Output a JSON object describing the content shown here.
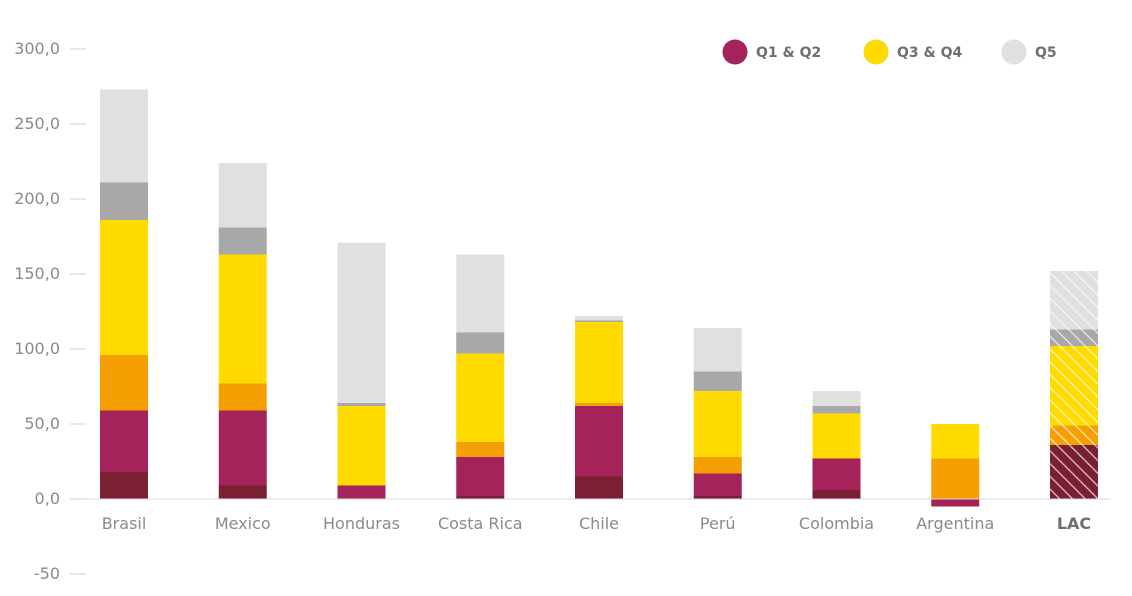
{
  "chart_data": {
    "type": "bar",
    "stacked": true,
    "categories": [
      "Brasil",
      "Mexico",
      "Honduras",
      "Costa Rica",
      "Chile",
      "Perú",
      "Colombia",
      "Argentina",
      "LAC"
    ],
    "highlight_category": "LAC",
    "ylim": [
      -50,
      300
    ],
    "yticks": [
      -50,
      0,
      50,
      100,
      150,
      200,
      250,
      300
    ],
    "ytick_labels": [
      "-50",
      "0,0",
      "50,0",
      "100,0",
      "150,0",
      "200,0",
      "250,0",
      "300,0"
    ],
    "grid": false,
    "legend_position": "top-right",
    "legend": [
      {
        "label": "Q1 & Q2",
        "color": "#a3235a"
      },
      {
        "label": "Q3 & Q4",
        "color": "#ffdb00"
      },
      {
        "label": "Q5",
        "color": "#e0e0e0"
      }
    ],
    "series": [
      {
        "group": "Q1 & Q2",
        "color": "#7a2032",
        "values": [
          18,
          9,
          0,
          2,
          15,
          2,
          6,
          0,
          36
        ]
      },
      {
        "group": "Q1 & Q2",
        "color": "#a3235a",
        "values": [
          41,
          50,
          9,
          26,
          47,
          15,
          21,
          -5,
          0
        ]
      },
      {
        "group": "Q3 & Q4",
        "color": "#f5a000",
        "values": [
          37,
          18,
          0,
          10,
          2,
          11,
          0,
          27,
          13
        ]
      },
      {
        "group": "Q3 & Q4",
        "color": "#ffdb00",
        "values": [
          90,
          86,
          53,
          59,
          54,
          44,
          30,
          23,
          53
        ]
      },
      {
        "group": "Q5",
        "color": "#a8a8a8",
        "values": [
          25,
          18,
          2,
          14,
          1,
          13,
          5,
          0,
          11
        ]
      },
      {
        "group": "Q5",
        "color": "#e0e0e0",
        "values": [
          62,
          43,
          107,
          52,
          3,
          29,
          10,
          0,
          39
        ]
      }
    ]
  }
}
